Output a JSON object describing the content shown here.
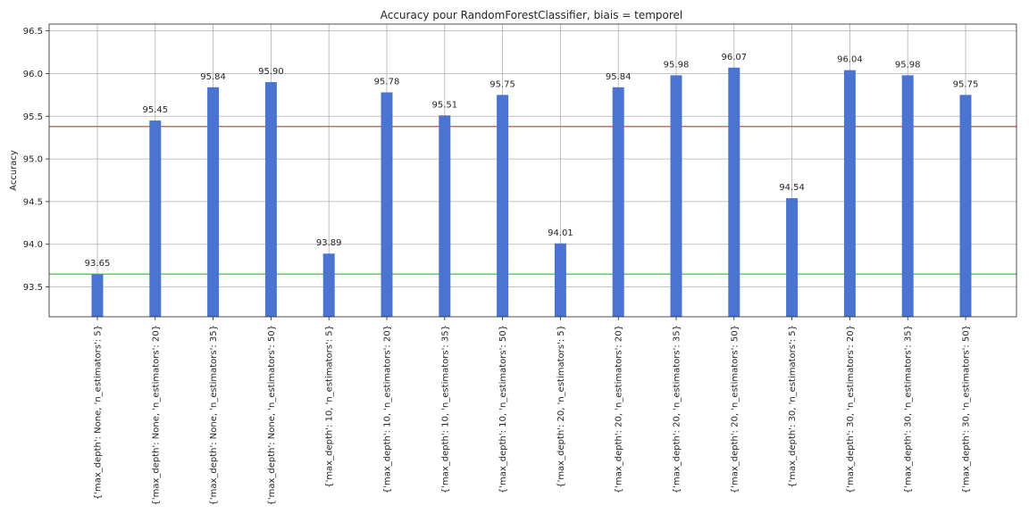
{
  "chart_data": {
    "type": "bar",
    "title": "Accuracy pour RandomForestClassifier, biais = temporel",
    "xlabel": "",
    "ylabel": "Accuracy",
    "ylim": [
      93.15,
      96.58
    ],
    "yticks": [
      93.5,
      94.0,
      94.5,
      95.0,
      95.5,
      96.0,
      96.5
    ],
    "ytick_labels": [
      "93.5",
      "94.0",
      "94.5",
      "95.0",
      "95.5",
      "96.0",
      "96.5"
    ],
    "grid": true,
    "categories": [
      "{'max_depth': None, 'n_estimators': 5}",
      "{'max_depth': None, 'n_estimators': 20}",
      "{'max_depth': None, 'n_estimators': 35}",
      "{'max_depth': None, 'n_estimators': 50}",
      "{'max_depth': 10, 'n_estimators': 5}",
      "{'max_depth': 10, 'n_estimators': 20}",
      "{'max_depth': 10, 'n_estimators': 35}",
      "{'max_depth': 10, 'n_estimators': 50}",
      "{'max_depth': 20, 'n_estimators': 5}",
      "{'max_depth': 20, 'n_estimators': 20}",
      "{'max_depth': 20, 'n_estimators': 35}",
      "{'max_depth': 20, 'n_estimators': 50}",
      "{'max_depth': 30, 'n_estimators': 5}",
      "{'max_depth': 30, 'n_estimators': 20}",
      "{'max_depth': 30, 'n_estimators': 35}",
      "{'max_depth': 30, 'n_estimators': 50}"
    ],
    "values": [
      93.65,
      95.45,
      95.84,
      95.9,
      93.89,
      95.78,
      95.51,
      95.75,
      94.01,
      95.84,
      95.98,
      96.07,
      94.54,
      96.04,
      95.98,
      95.75
    ],
    "value_labels": [
      "93.65",
      "95.45",
      "95.84",
      "95.90",
      "93.89",
      "95.78",
      "95.51",
      "95.75",
      "94.01",
      "95.84",
      "95.98",
      "96.07",
      "94.54",
      "96.04",
      "95.98",
      "95.75"
    ],
    "reference_lines": [
      {
        "value": 95.38,
        "color": "#e06666"
      },
      {
        "value": 93.65,
        "color": "#6fcf6f"
      }
    ],
    "bar_color": "#4a74cf"
  }
}
